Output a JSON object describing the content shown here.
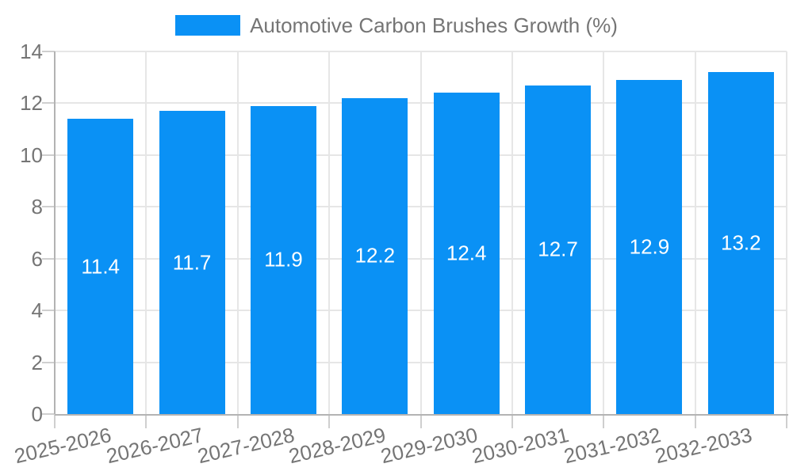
{
  "chart_data": {
    "type": "bar",
    "title": "Automotive Carbon Brushes Growth (%)",
    "legend_position": "top",
    "categories": [
      "2025-2026",
      "2026-2027",
      "2027-2028",
      "2028-2029",
      "2029-2030",
      "2030-2031",
      "2031-2032",
      "2032-2033"
    ],
    "series": [
      {
        "name": "Automotive Carbon Brushes Growth (%)",
        "values": [
          11.4,
          11.7,
          11.9,
          12.2,
          12.4,
          12.7,
          12.9,
          13.2
        ]
      }
    ],
    "bar_labels": [
      "11.4",
      "11.7",
      "11.9",
      "12.2",
      "12.4",
      "12.7",
      "12.9",
      "13.2"
    ],
    "xlabel": "",
    "ylabel": "",
    "ylim": [
      0,
      14
    ],
    "yticks": [
      0,
      2,
      4,
      6,
      8,
      10,
      12,
      14
    ],
    "grid": true,
    "colors": {
      "bar": "#0a91f5",
      "tick_text": "#757575",
      "bar_label_text": "#ffffff",
      "gridline": "#e6e6e6",
      "axis_line": "#b3b3b3"
    }
  }
}
